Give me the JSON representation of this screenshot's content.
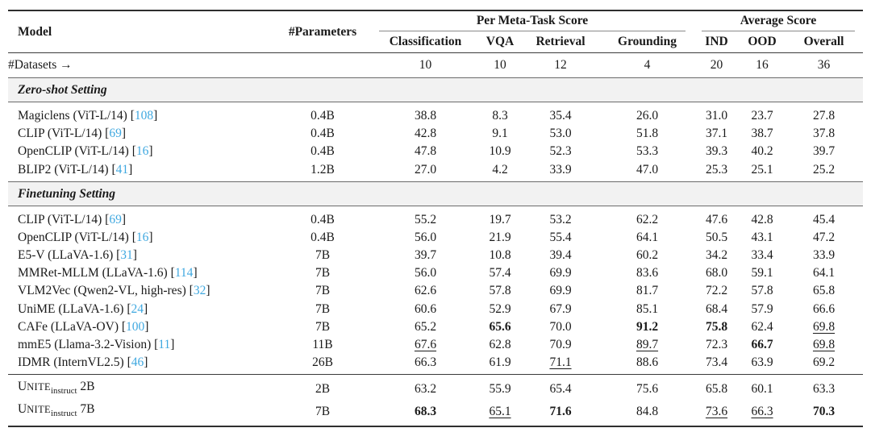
{
  "colors": {
    "citation_blue": "#3FA8E0",
    "section_banner_bg": "#F2F2F2"
  },
  "table": {
    "header": {
      "model": "Model",
      "parameters": "#Parameters",
      "meta_task_group": "Per Meta-Task Score",
      "average_group": "Average Score",
      "meta_task_columns": [
        "Classification",
        "VQA",
        "Retrieval",
        "Grounding"
      ],
      "average_columns": [
        "IND",
        "OOD",
        "Overall"
      ]
    },
    "datasets_row": {
      "label": "#Datasets →",
      "values": [
        "10",
        "10",
        "12",
        "4",
        "20",
        "16",
        "36"
      ]
    },
    "sections": [
      {
        "title": "Zero-shot Setting",
        "rows": [
          {
            "model": "Magiclens (ViT-L/14)",
            "cite": "108",
            "params": "0.4B",
            "scores": [
              "38.8",
              "8.3",
              "35.4",
              "26.0",
              "31.0",
              "23.7",
              "27.8"
            ]
          },
          {
            "model": "CLIP (ViT-L/14)",
            "cite": "69",
            "params": "0.4B",
            "scores": [
              "42.8",
              "9.1",
              "53.0",
              "51.8",
              "37.1",
              "38.7",
              "37.8"
            ]
          },
          {
            "model": "OpenCLIP (ViT-L/14)",
            "cite": "16",
            "params": "0.4B",
            "scores": [
              "47.8",
              "10.9",
              "52.3",
              "53.3",
              "39.3",
              "40.2",
              "39.7"
            ]
          },
          {
            "model": "BLIP2 (ViT-L/14)",
            "cite": "41",
            "params": "1.2B",
            "scores": [
              "27.0",
              "4.2",
              "33.9",
              "47.0",
              "25.3",
              "25.1",
              "25.2"
            ]
          }
        ]
      },
      {
        "title": "Finetuning Setting",
        "rows": [
          {
            "model": "CLIP (ViT-L/14)",
            "cite": "69",
            "params": "0.4B",
            "scores": [
              "55.2",
              "19.7",
              "53.2",
              "62.2",
              "47.6",
              "42.8",
              "45.4"
            ]
          },
          {
            "model": "OpenCLIP (ViT-L/14)",
            "cite": "16",
            "params": "0.4B",
            "scores": [
              "56.0",
              "21.9",
              "55.4",
              "64.1",
              "50.5",
              "43.1",
              "47.2"
            ]
          },
          {
            "model": "E5-V (LLaVA-1.6)",
            "cite": "31",
            "params": "7B",
            "scores": [
              "39.7",
              "10.8",
              "39.4",
              "60.2",
              "34.2",
              "33.4",
              "33.9"
            ]
          },
          {
            "model": "MMRet-MLLM (LLaVA-1.6)",
            "cite": "114",
            "params": "7B",
            "scores": [
              "56.0",
              "57.4",
              "69.9",
              "83.6",
              "68.0",
              "59.1",
              "64.1"
            ]
          },
          {
            "model": "VLM2Vec (Qwen2-VL, high-res)",
            "cite": "32",
            "params": "7B",
            "scores": [
              "62.6",
              "57.8",
              "69.9",
              "81.7",
              "72.2",
              "57.8",
              "65.8"
            ]
          },
          {
            "model": "UniME (LLaVA-1.6)",
            "cite": "24",
            "params": "7B",
            "scores": [
              "60.6",
              "52.9",
              "67.9",
              "85.1",
              "68.4",
              "57.9",
              "66.6"
            ]
          },
          {
            "model": "CAFe (LLaVA-OV)",
            "cite": "100",
            "params": "7B",
            "scores": [
              "65.2",
              {
                "t": "65.6",
                "style": "bold"
              },
              "70.0",
              {
                "t": "91.2",
                "style": "bold"
              },
              {
                "t": "75.8",
                "style": "bold"
              },
              "62.4",
              {
                "t": "69.8",
                "style": "underline"
              }
            ]
          },
          {
            "model": "mmE5 (Llama-3.2-Vision)",
            "cite": "11",
            "params": "11B",
            "scores": [
              {
                "t": "67.6",
                "style": "underline"
              },
              "62.8",
              "70.9",
              {
                "t": "89.7",
                "style": "underline"
              },
              "72.3",
              {
                "t": "66.7",
                "style": "bold"
              },
              {
                "t": "69.8",
                "style": "underline"
              }
            ]
          },
          {
            "model": "IDMR (InternVL2.5)",
            "cite": "46",
            "params": "26B",
            "scores": [
              "66.3",
              "61.9",
              {
                "t": "71.1",
                "style": "underline"
              },
              "88.6",
              "73.4",
              "63.9",
              "69.2"
            ]
          }
        ]
      },
      {
        "title": null,
        "divider": true,
        "rows": [
          {
            "unite": {
              "lead": "U",
              "smallcaps": "NITE",
              "subscript": "instruct",
              "suffix": "2B"
            },
            "params": "2B",
            "scores": [
              "63.2",
              "55.9",
              "65.4",
              "75.6",
              "65.8",
              "60.1",
              "63.3"
            ]
          },
          {
            "unite": {
              "lead": "U",
              "smallcaps": "NITE",
              "subscript": "instruct",
              "suffix": "7B"
            },
            "params": "7B",
            "scores": [
              {
                "t": "68.3",
                "style": "bold"
              },
              {
                "t": "65.1",
                "style": "underline"
              },
              {
                "t": "71.6",
                "style": "bold"
              },
              "84.8",
              {
                "t": "73.6",
                "style": "underline"
              },
              {
                "t": "66.3",
                "style": "underline"
              },
              {
                "t": "70.3",
                "style": "bold"
              }
            ]
          }
        ]
      }
    ]
  }
}
